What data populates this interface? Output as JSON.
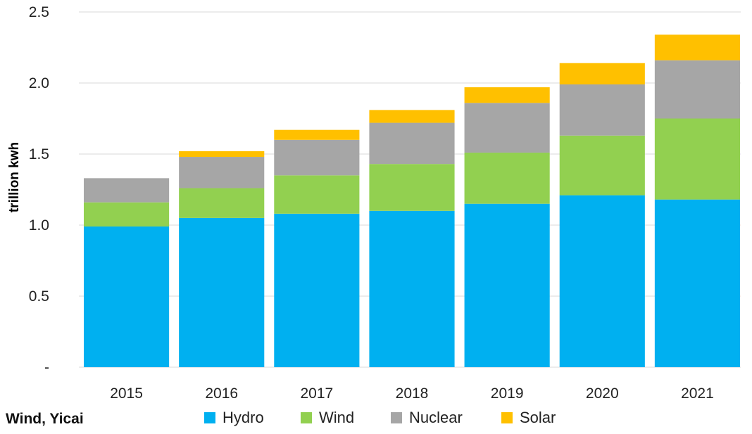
{
  "source": "Wind, Yicai",
  "chart_data": {
    "type": "bar",
    "stacked": true,
    "categories": [
      "2015",
      "2016",
      "2017",
      "2018",
      "2019",
      "2020",
      "2021"
    ],
    "series": [
      {
        "name": "Hydro",
        "color": "#00B0F0",
        "values": [
          0.99,
          1.05,
          1.08,
          1.1,
          1.15,
          1.21,
          1.18
        ]
      },
      {
        "name": "Wind",
        "color": "#92D050",
        "values": [
          0.17,
          0.21,
          0.27,
          0.33,
          0.36,
          0.42,
          0.57
        ]
      },
      {
        "name": "Nuclear",
        "color": "#A6A6A6",
        "values": [
          0.17,
          0.22,
          0.25,
          0.29,
          0.35,
          0.36,
          0.41
        ]
      },
      {
        "name": "Solar",
        "color": "#FFC000",
        "values": [
          0.0,
          0.04,
          0.07,
          0.09,
          0.11,
          0.15,
          0.18
        ]
      }
    ],
    "ylabel": "trillion kwh",
    "xlabel": "",
    "ylim": [
      0,
      2.5
    ],
    "yticks": [
      {
        "value": 0,
        "label": "-"
      },
      {
        "value": 0.5,
        "label": "0.5"
      },
      {
        "value": 1.0,
        "label": "1.0"
      },
      {
        "value": 1.5,
        "label": "1.5"
      },
      {
        "value": 2.0,
        "label": "2.0"
      },
      {
        "value": 2.5,
        "label": "2.5"
      }
    ],
    "grid": true,
    "legend_position": "bottom"
  }
}
